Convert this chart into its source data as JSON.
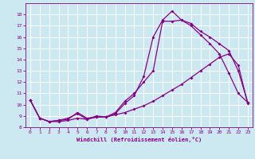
{
  "xlabel": "Windchill (Refroidissement éolien,°C)",
  "bg_color": "#cce8f0",
  "line_color": "#880088",
  "grid_color": "#ffffff",
  "xlim": [
    -0.5,
    23.5
  ],
  "ylim": [
    8.0,
    19.0
  ],
  "yticks": [
    8,
    9,
    10,
    11,
    12,
    13,
    14,
    15,
    16,
    17,
    18
  ],
  "xticks": [
    0,
    1,
    2,
    3,
    4,
    5,
    6,
    7,
    8,
    9,
    10,
    11,
    12,
    13,
    14,
    15,
    16,
    17,
    18,
    19,
    20,
    21,
    22,
    23
  ],
  "s1_x": [
    0,
    1,
    2,
    3,
    4,
    5,
    6,
    7,
    8,
    9,
    10,
    11,
    12,
    13,
    14,
    15,
    16,
    17,
    18,
    19,
    20,
    21,
    22,
    23
  ],
  "s1_y": [
    10.4,
    8.8,
    8.5,
    8.6,
    8.7,
    9.3,
    8.8,
    8.9,
    8.9,
    9.2,
    10.1,
    10.8,
    12.5,
    16.0,
    17.5,
    18.3,
    17.5,
    17.0,
    16.2,
    15.4,
    14.5,
    12.8,
    11.0,
    10.2
  ],
  "s2_x": [
    0,
    1,
    2,
    3,
    4,
    5,
    6,
    7,
    8,
    9,
    10,
    11,
    12,
    13,
    14,
    15,
    16,
    17,
    18,
    19,
    20,
    21,
    22,
    23
  ],
  "s2_y": [
    10.4,
    8.8,
    8.5,
    8.6,
    8.8,
    9.2,
    8.7,
    9.0,
    8.9,
    9.3,
    10.3,
    11.0,
    12.0,
    13.0,
    17.4,
    17.4,
    17.5,
    17.2,
    16.5,
    16.0,
    15.4,
    14.8,
    13.0,
    10.2
  ],
  "s3_x": [
    0,
    1,
    2,
    3,
    4,
    5,
    6,
    7,
    8,
    9,
    10,
    11,
    12,
    13,
    14,
    15,
    16,
    17,
    18,
    19,
    20,
    21,
    22,
    23
  ],
  "s3_y": [
    10.4,
    8.8,
    8.5,
    8.5,
    8.6,
    8.8,
    8.7,
    8.9,
    8.9,
    9.1,
    9.3,
    9.6,
    9.9,
    10.3,
    10.8,
    11.3,
    11.8,
    12.4,
    13.0,
    13.6,
    14.2,
    14.5,
    13.5,
    10.1
  ]
}
